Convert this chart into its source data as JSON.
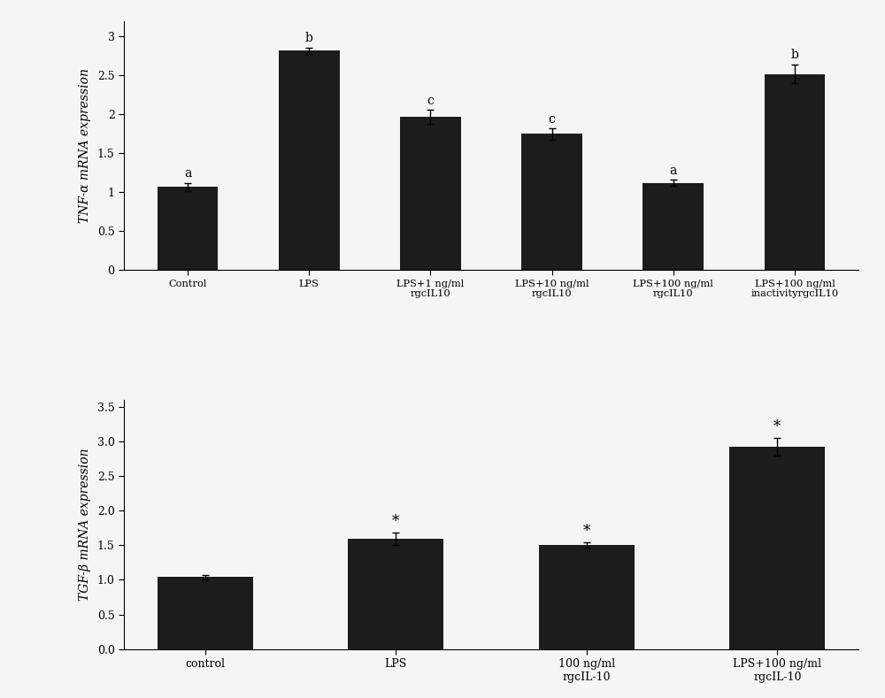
{
  "top_chart": {
    "categories": [
      "Control",
      "LPS",
      "LPS+1 ng/ml\nrgcIL10",
      "LPS+10 ng/ml\nrgcIL10",
      "LPS+100 ng/ml\nrgcIL10",
      "LPS+100 ng/ml\ninactivityrgcIL10"
    ],
    "values": [
      1.07,
      2.82,
      1.97,
      1.75,
      1.12,
      2.52
    ],
    "errors": [
      0.05,
      0.04,
      0.09,
      0.07,
      0.04,
      0.12
    ],
    "labels": [
      "a",
      "b",
      "c",
      "c",
      "a",
      "b"
    ],
    "ylabel": "TNF-α mRNA expression",
    "ylim": [
      0,
      3.2
    ],
    "yticks": [
      0,
      0.5,
      1.0,
      1.5,
      2.0,
      2.5,
      3.0
    ],
    "yticklabels": [
      "0",
      "0.5",
      "1",
      "1.5",
      "2",
      "2.5",
      "3"
    ],
    "bar_color": "#1c1c1c"
  },
  "bottom_chart": {
    "categories": [
      "control",
      "LPS",
      "100 ng/ml\nrgcIL-10",
      "LPS+100 ng/ml\nrgcIL-10"
    ],
    "values": [
      1.04,
      1.59,
      1.5,
      2.92
    ],
    "errors": [
      0.03,
      0.09,
      0.04,
      0.13
    ],
    "labels": [
      "",
      "*",
      "*",
      "*"
    ],
    "ylabel": "TGF-β mRNA expression",
    "ylim": [
      0.0,
      3.6
    ],
    "yticks": [
      0.0,
      0.5,
      1.0,
      1.5,
      2.0,
      2.5,
      3.0,
      3.5
    ],
    "yticklabels": [
      "0.0",
      "0.5",
      "1.0",
      "1.5",
      "2.0",
      "2.5",
      "3.0",
      "3.5"
    ],
    "bar_color": "#1c1c1c"
  },
  "background_color": "#f5f5f5",
  "figure_bg": "#f5f5f5"
}
